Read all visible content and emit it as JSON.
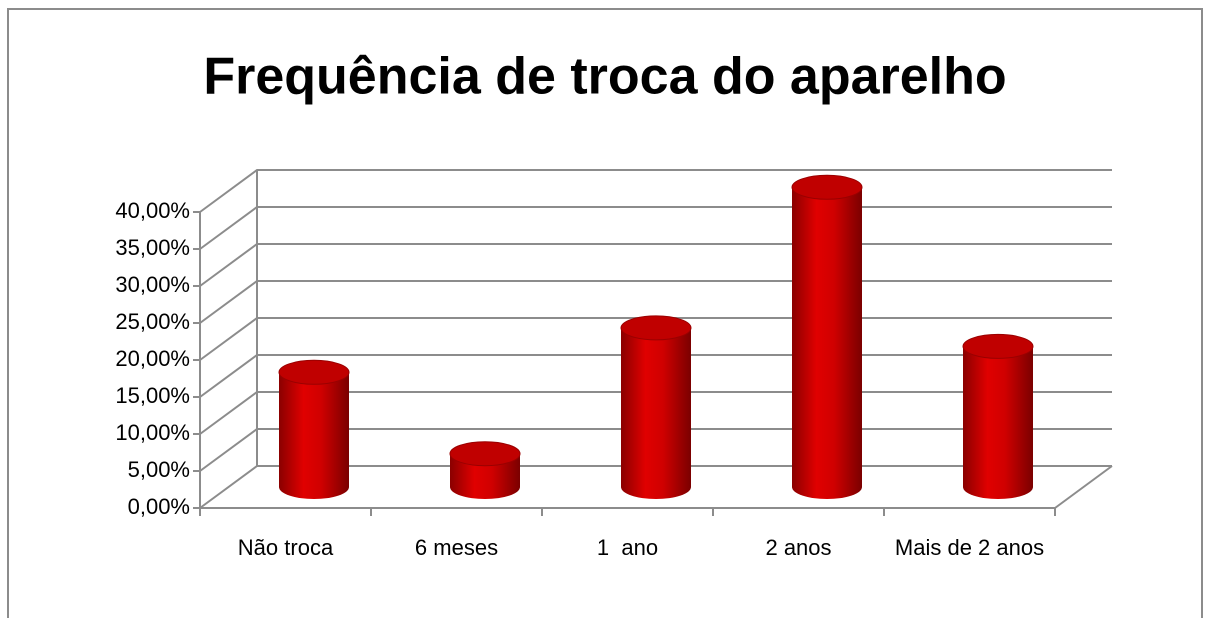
{
  "chart_data": {
    "type": "bar3d",
    "title": "Frequência de troca do aparelho",
    "categories": [
      "Não troca",
      "6 meses",
      "1  ano",
      "2 anos",
      "Mais de 2 anos"
    ],
    "values": [
      15.5,
      4.5,
      21.5,
      40.5,
      19
    ],
    "color": "#c00000",
    "ylim": [
      0,
      40
    ],
    "yticks": [
      {
        "value": 0,
        "label": "0,00%"
      },
      {
        "value": 5,
        "label": "5,00%"
      },
      {
        "value": 10,
        "label": "10,00%"
      },
      {
        "value": 15,
        "label": "15,00%"
      },
      {
        "value": 20,
        "label": "20,00%"
      },
      {
        "value": 25,
        "label": "25,00%"
      },
      {
        "value": 30,
        "label": "30,00%"
      },
      {
        "value": 35,
        "label": "35,00%"
      },
      {
        "value": 40,
        "label": "40,00%"
      }
    ],
    "grid": true
  }
}
